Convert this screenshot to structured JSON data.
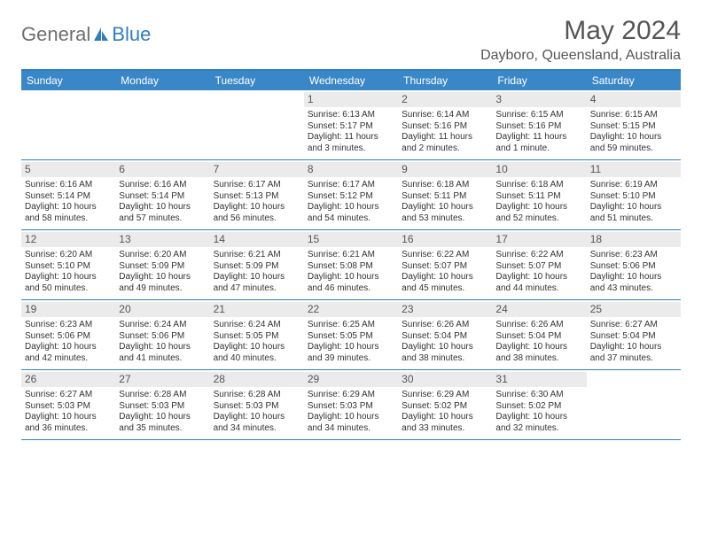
{
  "logo": {
    "general": "General",
    "blue": "Blue"
  },
  "title": "May 2024",
  "location": "Dayboro, Queensland, Australia",
  "colors": {
    "header_bg": "#3a87c8",
    "header_border": "#2f7ec2",
    "daynum_bg": "#ebebeb",
    "text": "#333333",
    "title_text": "#555555"
  },
  "day_names": [
    "Sunday",
    "Monday",
    "Tuesday",
    "Wednesday",
    "Thursday",
    "Friday",
    "Saturday"
  ],
  "weeks": [
    [
      {
        "blank": true
      },
      {
        "blank": true
      },
      {
        "blank": true
      },
      {
        "day": "1",
        "sunrise": "Sunrise: 6:13 AM",
        "sunset": "Sunset: 5:17 PM",
        "daylight": "Daylight: 11 hours and 3 minutes."
      },
      {
        "day": "2",
        "sunrise": "Sunrise: 6:14 AM",
        "sunset": "Sunset: 5:16 PM",
        "daylight": "Daylight: 11 hours and 2 minutes."
      },
      {
        "day": "3",
        "sunrise": "Sunrise: 6:15 AM",
        "sunset": "Sunset: 5:16 PM",
        "daylight": "Daylight: 11 hours and 1 minute."
      },
      {
        "day": "4",
        "sunrise": "Sunrise: 6:15 AM",
        "sunset": "Sunset: 5:15 PM",
        "daylight": "Daylight: 10 hours and 59 minutes."
      }
    ],
    [
      {
        "day": "5",
        "sunrise": "Sunrise: 6:16 AM",
        "sunset": "Sunset: 5:14 PM",
        "daylight": "Daylight: 10 hours and 58 minutes."
      },
      {
        "day": "6",
        "sunrise": "Sunrise: 6:16 AM",
        "sunset": "Sunset: 5:14 PM",
        "daylight": "Daylight: 10 hours and 57 minutes."
      },
      {
        "day": "7",
        "sunrise": "Sunrise: 6:17 AM",
        "sunset": "Sunset: 5:13 PM",
        "daylight": "Daylight: 10 hours and 56 minutes."
      },
      {
        "day": "8",
        "sunrise": "Sunrise: 6:17 AM",
        "sunset": "Sunset: 5:12 PM",
        "daylight": "Daylight: 10 hours and 54 minutes."
      },
      {
        "day": "9",
        "sunrise": "Sunrise: 6:18 AM",
        "sunset": "Sunset: 5:11 PM",
        "daylight": "Daylight: 10 hours and 53 minutes."
      },
      {
        "day": "10",
        "sunrise": "Sunrise: 6:18 AM",
        "sunset": "Sunset: 5:11 PM",
        "daylight": "Daylight: 10 hours and 52 minutes."
      },
      {
        "day": "11",
        "sunrise": "Sunrise: 6:19 AM",
        "sunset": "Sunset: 5:10 PM",
        "daylight": "Daylight: 10 hours and 51 minutes."
      }
    ],
    [
      {
        "day": "12",
        "sunrise": "Sunrise: 6:20 AM",
        "sunset": "Sunset: 5:10 PM",
        "daylight": "Daylight: 10 hours and 50 minutes."
      },
      {
        "day": "13",
        "sunrise": "Sunrise: 6:20 AM",
        "sunset": "Sunset: 5:09 PM",
        "daylight": "Daylight: 10 hours and 49 minutes."
      },
      {
        "day": "14",
        "sunrise": "Sunrise: 6:21 AM",
        "sunset": "Sunset: 5:09 PM",
        "daylight": "Daylight: 10 hours and 47 minutes."
      },
      {
        "day": "15",
        "sunrise": "Sunrise: 6:21 AM",
        "sunset": "Sunset: 5:08 PM",
        "daylight": "Daylight: 10 hours and 46 minutes."
      },
      {
        "day": "16",
        "sunrise": "Sunrise: 6:22 AM",
        "sunset": "Sunset: 5:07 PM",
        "daylight": "Daylight: 10 hours and 45 minutes."
      },
      {
        "day": "17",
        "sunrise": "Sunrise: 6:22 AM",
        "sunset": "Sunset: 5:07 PM",
        "daylight": "Daylight: 10 hours and 44 minutes."
      },
      {
        "day": "18",
        "sunrise": "Sunrise: 6:23 AM",
        "sunset": "Sunset: 5:06 PM",
        "daylight": "Daylight: 10 hours and 43 minutes."
      }
    ],
    [
      {
        "day": "19",
        "sunrise": "Sunrise: 6:23 AM",
        "sunset": "Sunset: 5:06 PM",
        "daylight": "Daylight: 10 hours and 42 minutes."
      },
      {
        "day": "20",
        "sunrise": "Sunrise: 6:24 AM",
        "sunset": "Sunset: 5:06 PM",
        "daylight": "Daylight: 10 hours and 41 minutes."
      },
      {
        "day": "21",
        "sunrise": "Sunrise: 6:24 AM",
        "sunset": "Sunset: 5:05 PM",
        "daylight": "Daylight: 10 hours and 40 minutes."
      },
      {
        "day": "22",
        "sunrise": "Sunrise: 6:25 AM",
        "sunset": "Sunset: 5:05 PM",
        "daylight": "Daylight: 10 hours and 39 minutes."
      },
      {
        "day": "23",
        "sunrise": "Sunrise: 6:26 AM",
        "sunset": "Sunset: 5:04 PM",
        "daylight": "Daylight: 10 hours and 38 minutes."
      },
      {
        "day": "24",
        "sunrise": "Sunrise: 6:26 AM",
        "sunset": "Sunset: 5:04 PM",
        "daylight": "Daylight: 10 hours and 38 minutes."
      },
      {
        "day": "25",
        "sunrise": "Sunrise: 6:27 AM",
        "sunset": "Sunset: 5:04 PM",
        "daylight": "Daylight: 10 hours and 37 minutes."
      }
    ],
    [
      {
        "day": "26",
        "sunrise": "Sunrise: 6:27 AM",
        "sunset": "Sunset: 5:03 PM",
        "daylight": "Daylight: 10 hours and 36 minutes."
      },
      {
        "day": "27",
        "sunrise": "Sunrise: 6:28 AM",
        "sunset": "Sunset: 5:03 PM",
        "daylight": "Daylight: 10 hours and 35 minutes."
      },
      {
        "day": "28",
        "sunrise": "Sunrise: 6:28 AM",
        "sunset": "Sunset: 5:03 PM",
        "daylight": "Daylight: 10 hours and 34 minutes."
      },
      {
        "day": "29",
        "sunrise": "Sunrise: 6:29 AM",
        "sunset": "Sunset: 5:03 PM",
        "daylight": "Daylight: 10 hours and 34 minutes."
      },
      {
        "day": "30",
        "sunrise": "Sunrise: 6:29 AM",
        "sunset": "Sunset: 5:02 PM",
        "daylight": "Daylight: 10 hours and 33 minutes."
      },
      {
        "day": "31",
        "sunrise": "Sunrise: 6:30 AM",
        "sunset": "Sunset: 5:02 PM",
        "daylight": "Daylight: 10 hours and 32 minutes."
      },
      {
        "blank": true
      }
    ]
  ]
}
